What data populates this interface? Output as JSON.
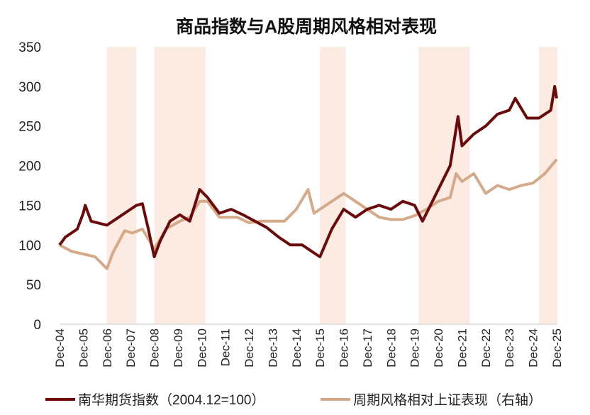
{
  "chart_data": {
    "type": "line",
    "title": "商品指数与A股周期风格相对表现",
    "xlabel": "",
    "ylabel": "",
    "ylim": [
      0,
      350
    ],
    "yticks": [
      "0",
      "50",
      "100",
      "150",
      "200",
      "250",
      "300",
      "350"
    ],
    "xticks": [
      "Dec-04",
      "Dec-05",
      "Dec-06",
      "Dec-07",
      "Dec-08",
      "Dec-09",
      "Dec-10",
      "Dec-11",
      "Dec-12",
      "Dec-13",
      "Dec-14",
      "Dec-15",
      "Dec-16",
      "Dec-17",
      "Dec-18",
      "Dec-19",
      "Dec-20",
      "Dec-21",
      "Dec-22",
      "Dec-23",
      "Dec-24",
      "Dec-25"
    ],
    "xlim": [
      "2004-12",
      "2025-12"
    ],
    "grid": false,
    "legend_position": "bottom",
    "shaded_periods": [
      [
        "2006-12",
        "2008-03"
      ],
      [
        "2008-12",
        "2011-02"
      ],
      [
        "2015-12",
        "2017-01"
      ],
      [
        "2020-02",
        "2022-04"
      ],
      [
        "2025-03",
        "2025-12"
      ]
    ],
    "shade_color": "#fcebe3",
    "series": [
      {
        "name": "南华期货指数（2004.12=100）",
        "color": "#6b0a0a",
        "points": [
          [
            "2004-12",
            100
          ],
          [
            "2005-03",
            110
          ],
          [
            "2005-09",
            120
          ],
          [
            "2005-12",
            140
          ],
          [
            "2006-01",
            150
          ],
          [
            "2006-04",
            130
          ],
          [
            "2006-12",
            125
          ],
          [
            "2007-06",
            135
          ],
          [
            "2007-12",
            145
          ],
          [
            "2008-03",
            150
          ],
          [
            "2008-06",
            152
          ],
          [
            "2008-09",
            120
          ],
          [
            "2008-12",
            85
          ],
          [
            "2009-03",
            105
          ],
          [
            "2009-08",
            130
          ],
          [
            "2010-01",
            138
          ],
          [
            "2010-06",
            130
          ],
          [
            "2010-11",
            170
          ],
          [
            "2011-03",
            160
          ],
          [
            "2011-09",
            140
          ],
          [
            "2012-03",
            145
          ],
          [
            "2012-09",
            138
          ],
          [
            "2013-03",
            130
          ],
          [
            "2013-09",
            122
          ],
          [
            "2014-03",
            110
          ],
          [
            "2014-09",
            100
          ],
          [
            "2015-03",
            100
          ],
          [
            "2015-09",
            90
          ],
          [
            "2015-12",
            85
          ],
          [
            "2016-06",
            120
          ],
          [
            "2016-12",
            145
          ],
          [
            "2017-06",
            135
          ],
          [
            "2017-12",
            145
          ],
          [
            "2018-06",
            150
          ],
          [
            "2018-12",
            145
          ],
          [
            "2019-06",
            155
          ],
          [
            "2019-12",
            150
          ],
          [
            "2020-04",
            130
          ],
          [
            "2020-09",
            155
          ],
          [
            "2021-03",
            185
          ],
          [
            "2021-06",
            200
          ],
          [
            "2021-10",
            262
          ],
          [
            "2021-12",
            225
          ],
          [
            "2022-06",
            240
          ],
          [
            "2022-12",
            250
          ],
          [
            "2023-06",
            265
          ],
          [
            "2023-12",
            270
          ],
          [
            "2024-03",
            285
          ],
          [
            "2024-09",
            260
          ],
          [
            "2025-03",
            260
          ],
          [
            "2025-09",
            270
          ],
          [
            "2025-11",
            300
          ],
          [
            "2025-12",
            285
          ]
        ]
      },
      {
        "name": "周期风格相对上证表现（右轴）",
        "color": "#d4aa8a",
        "points": [
          [
            "2004-12",
            100
          ],
          [
            "2005-06",
            92
          ],
          [
            "2006-06",
            85
          ],
          [
            "2006-12",
            70
          ],
          [
            "2007-03",
            90
          ],
          [
            "2007-09",
            118
          ],
          [
            "2008-01",
            115
          ],
          [
            "2008-06",
            120
          ],
          [
            "2008-12",
            95
          ],
          [
            "2009-06",
            120
          ],
          [
            "2010-01",
            130
          ],
          [
            "2010-06",
            135
          ],
          [
            "2010-11",
            155
          ],
          [
            "2011-03",
            155
          ],
          [
            "2011-09",
            135
          ],
          [
            "2012-06",
            135
          ],
          [
            "2012-12",
            128
          ],
          [
            "2013-06",
            130
          ],
          [
            "2014-06",
            130
          ],
          [
            "2014-12",
            145
          ],
          [
            "2015-06",
            170
          ],
          [
            "2015-09",
            140
          ],
          [
            "2016-06",
            155
          ],
          [
            "2016-12",
            165
          ],
          [
            "2017-06",
            155
          ],
          [
            "2017-12",
            145
          ],
          [
            "2018-06",
            135
          ],
          [
            "2018-12",
            132
          ],
          [
            "2019-06",
            132
          ],
          [
            "2019-12",
            137
          ],
          [
            "2020-06",
            145
          ],
          [
            "2020-12",
            155
          ],
          [
            "2021-06",
            160
          ],
          [
            "2021-09",
            190
          ],
          [
            "2021-12",
            180
          ],
          [
            "2022-06",
            190
          ],
          [
            "2022-12",
            165
          ],
          [
            "2023-06",
            175
          ],
          [
            "2023-12",
            170
          ],
          [
            "2024-06",
            175
          ],
          [
            "2024-12",
            178
          ],
          [
            "2025-06",
            190
          ],
          [
            "2025-12",
            208
          ]
        ]
      }
    ]
  }
}
